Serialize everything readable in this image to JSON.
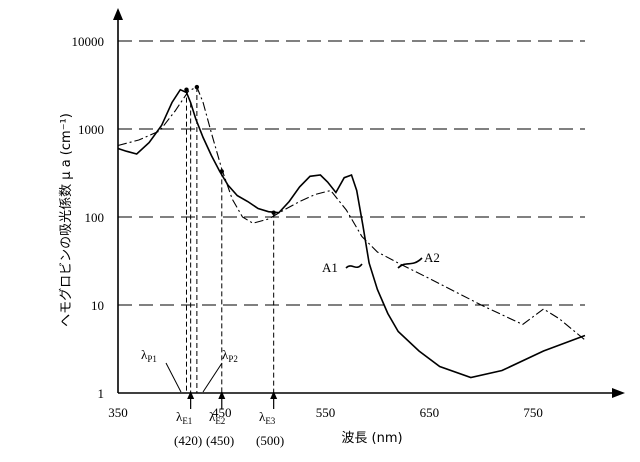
{
  "chart_data": {
    "type": "line",
    "ylabel": "ヘモグロビンの吸光係数 μ a (cm⁻¹)",
    "xlabel": "波長 (nm)",
    "yscale": "log",
    "ylim": [
      1,
      10000
    ],
    "xlim": [
      350,
      800
    ],
    "yticks": [
      {
        "value": 1,
        "label": "1"
      },
      {
        "value": 10,
        "label": "10"
      },
      {
        "value": 100,
        "label": "100"
      },
      {
        "value": 1000,
        "label": "1000"
      },
      {
        "value": 10000,
        "label": "10000"
      }
    ],
    "xticks": [
      {
        "value": 350,
        "label": "350"
      },
      {
        "value": 450,
        "label": "450"
      },
      {
        "value": 550,
        "label": "550"
      },
      {
        "value": 650,
        "label": "650"
      },
      {
        "value": 750,
        "label": "750"
      }
    ],
    "grid": "horizontal dashed",
    "series": [
      {
        "name": "A1",
        "style": "solid",
        "x": [
          350,
          358,
          368,
          380,
          392,
          402,
          410,
          416,
          420,
          425,
          432,
          440,
          448,
          456,
          465,
          475,
          485,
          495,
          505,
          515,
          525,
          535,
          545,
          552,
          560,
          568,
          575,
          580,
          586,
          592,
          600,
          610,
          620,
          640,
          660,
          690,
          720,
          760,
          800
        ],
        "y": [
          600,
          560,
          520,
          700,
          1100,
          2000,
          2800,
          2600,
          2000,
          1300,
          800,
          500,
          330,
          230,
          175,
          150,
          125,
          115,
          112,
          150,
          220,
          290,
          300,
          250,
          190,
          280,
          300,
          200,
          80,
          30,
          15,
          8,
          5,
          3,
          2,
          1.5,
          1.8,
          3,
          4.5
        ]
      },
      {
        "name": "A2",
        "style": "dash-dot",
        "x": [
          350,
          370,
          390,
          405,
          418,
          426,
          432,
          440,
          450,
          460,
          470,
          480,
          495,
          510,
          525,
          540,
          555,
          570,
          585,
          600,
          620,
          650,
          700,
          740,
          760,
          775,
          800
        ],
        "y": [
          650,
          750,
          950,
          1600,
          2700,
          3000,
          2000,
          900,
          350,
          160,
          100,
          85,
          95,
          120,
          150,
          180,
          200,
          120,
          60,
          40,
          30,
          20,
          10,
          6,
          9,
          7,
          4
        ]
      }
    ],
    "annotations": [
      {
        "text": "A1",
        "series": "A1",
        "x": 575,
        "y": 25
      },
      {
        "text": "A2",
        "series": "A2",
        "x": 650,
        "y": 30
      },
      {
        "text": "λP1",
        "x": 418,
        "y": 1,
        "kind": "peak-marker"
      },
      {
        "text": "λP2",
        "x": 430,
        "y": 1,
        "kind": "peak-marker"
      },
      {
        "text": "λE1",
        "sub": "(420)",
        "x": 420,
        "kind": "arrow"
      },
      {
        "text": "λE2",
        "sub": "(450)",
        "x": 450,
        "kind": "arrow"
      },
      {
        "text": "λE3",
        "sub": "(500)",
        "x": 500,
        "kind": "arrow"
      }
    ]
  },
  "labels": {
    "lambda": "λ",
    "p1_sub": "P1",
    "p2_sub": "P2",
    "e1_sub": "E1",
    "e2_sub": "E2",
    "e3_sub": "E3",
    "e1_val": "(420)",
    "e2_val": "(450)",
    "e3_val": "(500)",
    "a1": "A1",
    "a2": "A2"
  }
}
